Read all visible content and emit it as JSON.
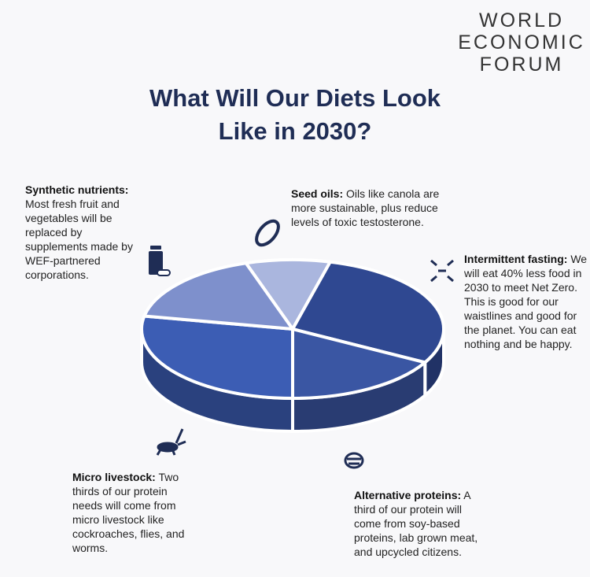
{
  "logo": [
    "WORLD",
    "ECONOMIC",
    "FORUM"
  ],
  "chart_data": {
    "type": "pie",
    "title": "What Will Our Diets Look Like in 2030?",
    "categories": [
      "Seed oils:",
      "Intermittent fasting:",
      "Alternative proteins:",
      "Micro livestock:",
      "Synthetic nutrients:"
    ],
    "descriptions": [
      "Oils like canola are more sustainable, plus reduce levels of toxic testosterone.",
      "We will eat 40% less food in 2030 to meet Net Zero. This is good for our waistlines and good for the planet. You can eat nothing and be happy.",
      "A third of our protein will come from soy-based proteins, lab grown meat, and upcycled citizens.",
      "Two thirds of our protein needs will come from micro livestock like cockroaches, flies, and worms.",
      "Most fresh fruit and vegetables will be replaced by supplements made by WEF-partnered corporations."
    ],
    "values": [
      9,
      29,
      17,
      28,
      17
    ],
    "colors": [
      "#aab6de",
      "#2f4891",
      "#3a56a3",
      "#3c5db4",
      "#7e90cc"
    ]
  }
}
